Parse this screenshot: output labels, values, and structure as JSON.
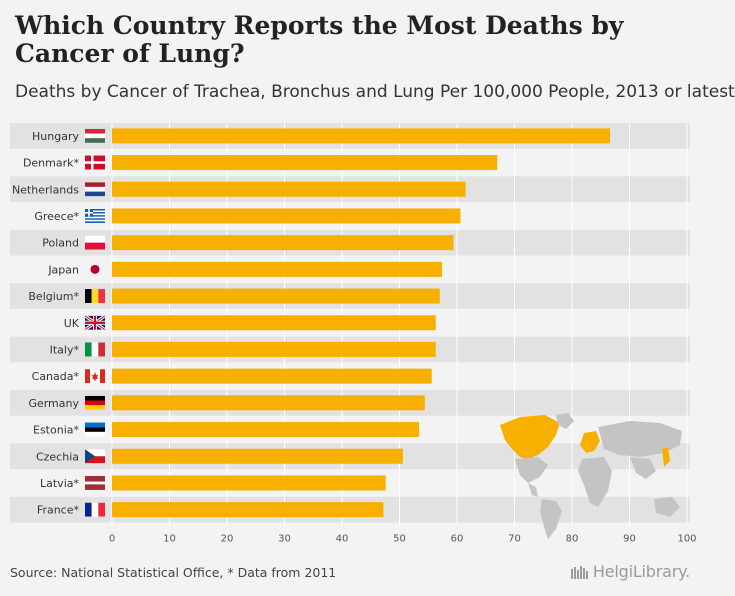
{
  "header": {
    "title": "Which Country Reports the Most Deaths by Cancer of Lung?",
    "subtitle": "Deaths by Cancer of Trachea, Bronchus and Lung Per 100,000 People, 2013 or latest"
  },
  "footer": {
    "source": "Source: National Statistical Office, * Data from 2011",
    "brand": "HelgiLibrary."
  },
  "colors": {
    "bar": "#f8b000",
    "row_band": "#e2e2e2",
    "map_land": "#c4c4c4",
    "map_highlight": "#f8b000"
  },
  "chart_data": {
    "type": "bar",
    "orientation": "horizontal",
    "title": "Which Country Reports the Most Deaths by Cancer of Lung?",
    "subtitle": "Deaths by Cancer of Trachea, Bronchus and Lung Per 100,000 People, 2013 or latest",
    "categories": [
      "Hungary",
      "Denmark*",
      "Netherlands",
      "Greece*",
      "Poland",
      "Japan",
      "Belgium*",
      "UK",
      "Italy*",
      "Canada*",
      "Germany",
      "Estonia*",
      "Czechia",
      "Latvia*",
      "France*"
    ],
    "flag_icons": [
      "hungary-flag-icon",
      "denmark-flag-icon",
      "netherlands-flag-icon",
      "greece-flag-icon",
      "poland-flag-icon",
      "japan-flag-icon",
      "belgium-flag-icon",
      "uk-flag-icon",
      "italy-flag-icon",
      "canada-flag-icon",
      "germany-flag-icon",
      "estonia-flag-icon",
      "czechia-flag-icon",
      "latvia-flag-icon",
      "france-flag-icon"
    ],
    "values": [
      86.6,
      67.0,
      61.5,
      60.6,
      59.4,
      57.4,
      57.0,
      56.3,
      56.3,
      55.6,
      54.4,
      53.4,
      50.6,
      47.6,
      47.2
    ],
    "xlim": [
      0,
      100
    ],
    "xticks": [
      0,
      10,
      20,
      30,
      40,
      50,
      60,
      70,
      80,
      90,
      100
    ],
    "xlabel": "",
    "ylabel": "",
    "grid": true,
    "inset_map_icon": "world-map-icon"
  }
}
